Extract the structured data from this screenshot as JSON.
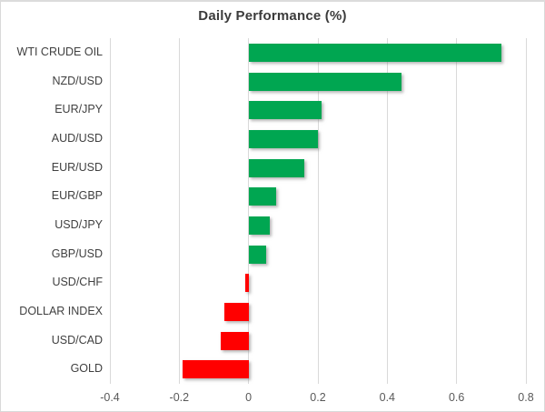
{
  "chart_data": {
    "type": "bar",
    "orientation": "horizontal",
    "title": "Daily Performance (%)",
    "categories": [
      "WTI CRUDE OIL",
      "NZD/USD",
      "EUR/JPY",
      "AUD/USD",
      "EUR/USD",
      "EUR/GBP",
      "USD/JPY",
      "GBP/USD",
      "USD/CHF",
      "DOLLAR INDEX",
      "USD/CAD",
      "GOLD"
    ],
    "values": [
      0.73,
      0.44,
      0.21,
      0.2,
      0.16,
      0.08,
      0.06,
      0.05,
      -0.01,
      -0.07,
      -0.08,
      -0.19
    ],
    "xlabel": "",
    "ylabel": "",
    "xlim": [
      -0.4,
      0.8
    ],
    "xticks": [
      -0.4,
      -0.2,
      0,
      0.2,
      0.4,
      0.6,
      0.8
    ],
    "grid": true,
    "legend": "none",
    "colors": {
      "positive": "#00A651",
      "negative": "#FF0000",
      "gridline": "#D9D9D9",
      "title_text": "#3B3B3B",
      "category_text": "#404040",
      "tick_text": "#595959",
      "background": "#FFFFFF"
    }
  }
}
